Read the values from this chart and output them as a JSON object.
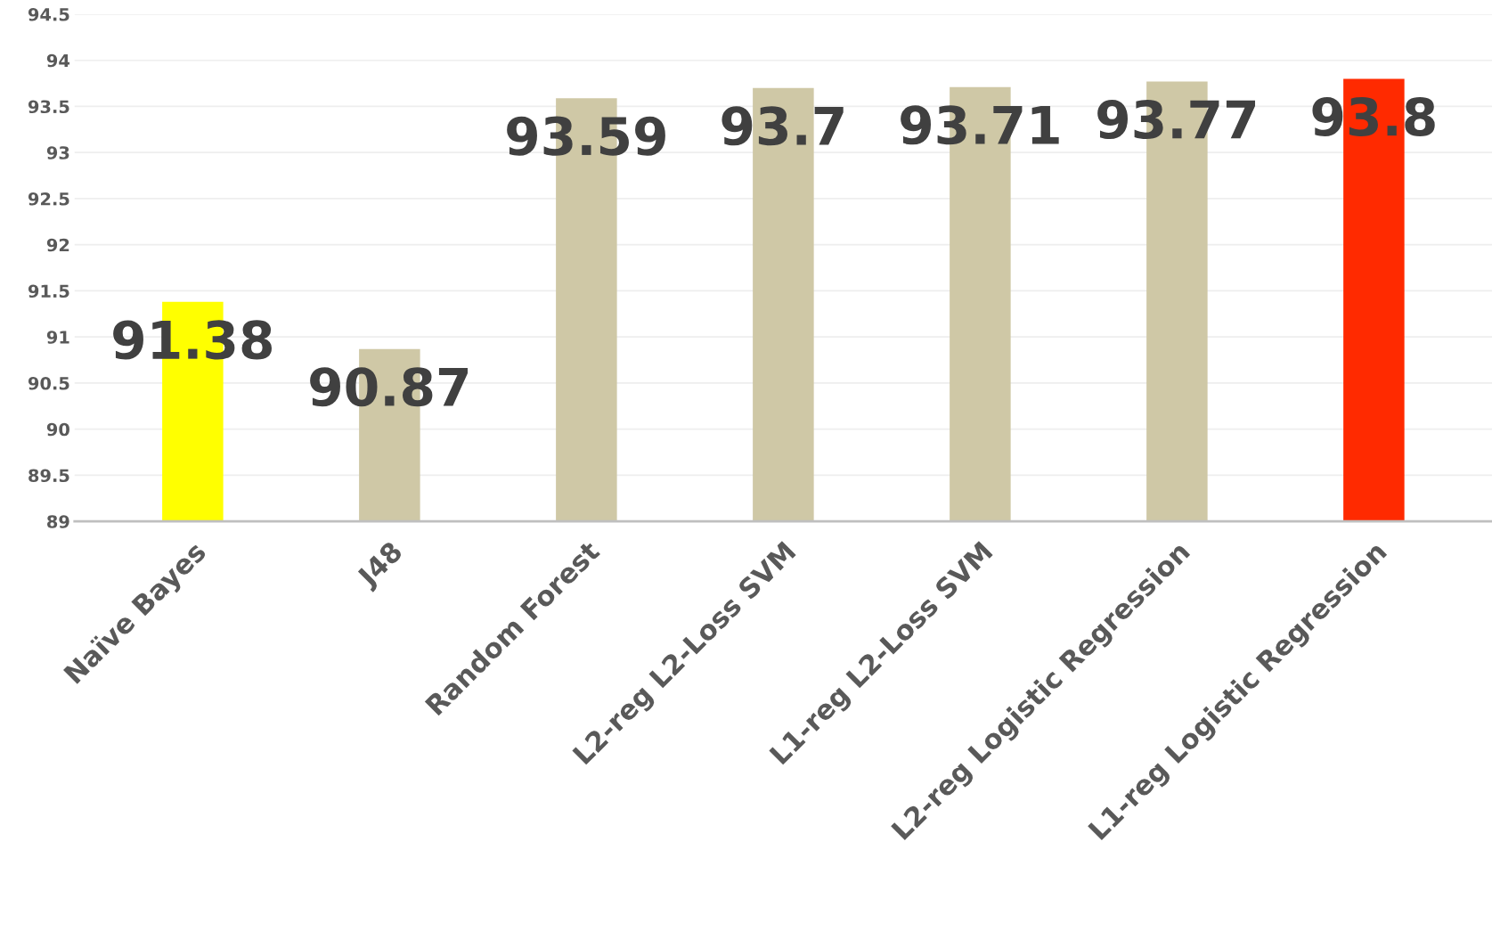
{
  "chart_data": {
    "type": "bar",
    "categories": [
      "Naïve Bayes",
      "J48",
      "Random Forest",
      "L2-reg L2-Loss SVM",
      "L1-reg L2-Loss SVM",
      "L2-reg Logistic Regression",
      "L1-reg Logistic Regression"
    ],
    "values": [
      91.38,
      90.87,
      93.59,
      93.7,
      93.71,
      93.77,
      93.8
    ],
    "colors": [
      "#ffff00",
      "#cfc8a6",
      "#cfc8a6",
      "#cfc8a6",
      "#cfc8a6",
      "#cfc8a6",
      "#ff2a00"
    ],
    "ylim": [
      89,
      94.5
    ],
    "yticks": [
      89,
      89.5,
      90,
      90.5,
      91,
      91.5,
      92,
      92.5,
      93,
      93.5,
      94,
      94.5
    ],
    "grid": "y",
    "data_labels": true
  }
}
